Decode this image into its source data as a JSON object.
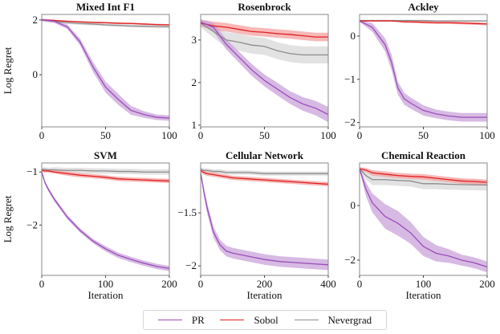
{
  "chart_data": [
    {
      "type": "line",
      "title": "Mixed Int F1",
      "xlabel": "",
      "ylabel": "Log Regret",
      "xlim": [
        0,
        100
      ],
      "ylim": [
        -1.9,
        2.2
      ],
      "xticks": [
        0,
        50,
        100
      ],
      "yticks": [
        0,
        2
      ],
      "x": [
        0,
        10,
        20,
        30,
        40,
        50,
        60,
        70,
        80,
        90,
        100
      ],
      "series": [
        {
          "name": "PR",
          "values": [
            2.0,
            1.95,
            1.75,
            1.2,
            0.3,
            -0.45,
            -0.9,
            -1.3,
            -1.45,
            -1.55,
            -1.58
          ],
          "band": [
            0.05,
            0.06,
            0.08,
            0.12,
            0.18,
            0.2,
            0.2,
            0.16,
            0.12,
            0.1,
            0.1
          ]
        },
        {
          "name": "Sobol",
          "values": [
            2.0,
            1.98,
            1.95,
            1.93,
            1.91,
            1.9,
            1.88,
            1.87,
            1.85,
            1.83,
            1.82
          ],
          "band": [
            0.03,
            0.03,
            0.03,
            0.03,
            0.03,
            0.03,
            0.03,
            0.03,
            0.03,
            0.03,
            0.03
          ]
        },
        {
          "name": "Nevergrad",
          "values": [
            2.0,
            1.95,
            1.9,
            1.87,
            1.85,
            1.82,
            1.8,
            1.78,
            1.77,
            1.76,
            1.75
          ],
          "band": [
            0.04,
            0.05,
            0.05,
            0.05,
            0.05,
            0.05,
            0.05,
            0.05,
            0.05,
            0.05,
            0.05
          ]
        }
      ]
    },
    {
      "type": "line",
      "title": "Rosenbrock",
      "xlabel": "",
      "ylabel": "",
      "xlim": [
        0,
        100
      ],
      "ylim": [
        0.96,
        3.6
      ],
      "xticks": [
        0,
        50,
        100
      ],
      "yticks": [
        1,
        2,
        3
      ],
      "x": [
        0,
        10,
        20,
        30,
        40,
        50,
        60,
        70,
        80,
        90,
        100
      ],
      "series": [
        {
          "name": "PR",
          "values": [
            3.42,
            3.3,
            2.9,
            2.6,
            2.3,
            2.05,
            1.85,
            1.65,
            1.5,
            1.4,
            1.25
          ],
          "band": [
            0.06,
            0.1,
            0.12,
            0.13,
            0.14,
            0.14,
            0.15,
            0.15,
            0.16,
            0.17,
            0.18
          ]
        },
        {
          "name": "Sobol",
          "values": [
            3.4,
            3.33,
            3.3,
            3.25,
            3.2,
            3.18,
            3.15,
            3.13,
            3.1,
            3.07,
            3.07
          ],
          "band": [
            0.08,
            0.1,
            0.1,
            0.1,
            0.1,
            0.1,
            0.1,
            0.1,
            0.1,
            0.1,
            0.1
          ]
        },
        {
          "name": "Nevergrad",
          "values": [
            3.4,
            3.2,
            3.0,
            2.95,
            2.88,
            2.85,
            2.75,
            2.68,
            2.65,
            2.65,
            2.65
          ],
          "band": [
            0.1,
            0.14,
            0.18,
            0.2,
            0.2,
            0.2,
            0.2,
            0.2,
            0.2,
            0.2,
            0.2
          ]
        }
      ]
    },
    {
      "type": "line",
      "title": "Ackley",
      "xlabel": "",
      "ylabel": "",
      "xlim": [
        0,
        100
      ],
      "ylim": [
        -2.1,
        0.5
      ],
      "xticks": [
        0,
        50,
        100
      ],
      "yticks": [
        -2,
        -1,
        0
      ],
      "x": [
        0,
        10,
        20,
        25,
        30,
        35,
        40,
        50,
        60,
        70,
        80,
        90,
        100
      ],
      "series": [
        {
          "name": "PR",
          "values": [
            0.35,
            0.2,
            -0.2,
            -0.6,
            -1.2,
            -1.45,
            -1.55,
            -1.72,
            -1.8,
            -1.85,
            -1.88,
            -1.88,
            -1.88
          ],
          "band": [
            0.02,
            0.1,
            0.15,
            0.18,
            0.15,
            0.14,
            0.13,
            0.12,
            0.1,
            0.1,
            0.1,
            0.1,
            0.1
          ]
        },
        {
          "name": "Sobol",
          "values": [
            0.35,
            0.35,
            0.35,
            0.35,
            0.34,
            0.33,
            0.33,
            0.32,
            0.31,
            0.31,
            0.3,
            0.29,
            0.28
          ],
          "band": [
            0.01,
            0.01,
            0.01,
            0.01,
            0.01,
            0.03,
            0.03,
            0.03,
            0.03,
            0.03,
            0.03,
            0.03,
            0.03
          ]
        },
        {
          "name": "Nevergrad",
          "values": [
            0.36,
            0.36,
            0.36,
            0.36,
            0.36,
            0.36,
            0.36,
            0.36,
            0.35,
            0.35,
            0.35,
            0.35,
            0.35
          ],
          "band": [
            0.01,
            0.01,
            0.01,
            0.01,
            0.01,
            0.01,
            0.01,
            0.01,
            0.01,
            0.01,
            0.01,
            0.01,
            0.01
          ]
        }
      ]
    },
    {
      "type": "line",
      "title": "SVM",
      "xlabel": "Iteration",
      "ylabel": "Log Regret",
      "xlim": [
        0,
        200
      ],
      "ylim": [
        -2.95,
        -0.83
      ],
      "xticks": [
        0,
        100,
        200
      ],
      "yticks": [
        -2,
        -1
      ],
      "x": [
        0,
        5,
        10,
        20,
        40,
        60,
        80,
        100,
        120,
        140,
        160,
        180,
        200
      ],
      "series": [
        {
          "name": "PR",
          "values": [
            -1.0,
            -1.2,
            -1.32,
            -1.52,
            -1.85,
            -2.1,
            -2.3,
            -2.45,
            -2.57,
            -2.65,
            -2.72,
            -2.78,
            -2.82
          ],
          "band": [
            0.02,
            0.03,
            0.04,
            0.04,
            0.04,
            0.04,
            0.04,
            0.05,
            0.05,
            0.05,
            0.05,
            0.05,
            0.05
          ]
        },
        {
          "name": "Sobol",
          "values": [
            -0.97,
            -0.98,
            -0.98,
            -1.0,
            -1.03,
            -1.06,
            -1.08,
            -1.1,
            -1.13,
            -1.14,
            -1.15,
            -1.16,
            -1.17
          ],
          "band": [
            0.03,
            0.03,
            0.03,
            0.03,
            0.04,
            0.04,
            0.04,
            0.04,
            0.04,
            0.04,
            0.04,
            0.04,
            0.04
          ]
        },
        {
          "name": "Nevergrad",
          "values": [
            -0.95,
            -0.95,
            -0.96,
            -0.96,
            -0.97,
            -0.97,
            -0.98,
            -0.98,
            -0.99,
            -0.99,
            -1.0,
            -1.0,
            -1.0
          ],
          "band": [
            0.03,
            0.04,
            0.04,
            0.05,
            0.05,
            0.05,
            0.05,
            0.05,
            0.05,
            0.05,
            0.05,
            0.05,
            0.05
          ]
        }
      ]
    },
    {
      "type": "line",
      "title": "Cellular Network",
      "xlabel": "Iteration",
      "ylabel": "",
      "xlim": [
        0,
        400
      ],
      "ylim": [
        -2.09,
        -1.03
      ],
      "xticks": [
        0,
        200,
        400
      ],
      "yticks": [
        -2.0,
        -1.5
      ],
      "x": [
        0,
        10,
        20,
        40,
        60,
        80,
        100,
        150,
        200,
        250,
        300,
        350,
        400
      ],
      "series": [
        {
          "name": "PR",
          "values": [
            -1.12,
            -1.3,
            -1.45,
            -1.68,
            -1.8,
            -1.86,
            -1.88,
            -1.91,
            -1.94,
            -1.96,
            -1.97,
            -1.98,
            -1.99
          ],
          "band": [
            0.02,
            0.04,
            0.05,
            0.05,
            0.05,
            0.05,
            0.05,
            0.05,
            0.05,
            0.05,
            0.05,
            0.05,
            0.05
          ]
        },
        {
          "name": "Sobol",
          "values": [
            -1.1,
            -1.12,
            -1.13,
            -1.14,
            -1.15,
            -1.16,
            -1.17,
            -1.18,
            -1.19,
            -1.2,
            -1.21,
            -1.22,
            -1.23
          ],
          "band": [
            0.02,
            0.02,
            0.02,
            0.02,
            0.02,
            0.02,
            0.02,
            0.02,
            0.02,
            0.02,
            0.02,
            0.02,
            0.02
          ]
        },
        {
          "name": "Nevergrad",
          "values": [
            -1.09,
            -1.1,
            -1.1,
            -1.11,
            -1.11,
            -1.12,
            -1.12,
            -1.12,
            -1.13,
            -1.13,
            -1.13,
            -1.13,
            -1.13
          ],
          "band": [
            0.02,
            0.02,
            0.02,
            0.02,
            0.02,
            0.02,
            0.02,
            0.02,
            0.02,
            0.02,
            0.02,
            0.02,
            0.02
          ]
        }
      ]
    },
    {
      "type": "line",
      "title": "Chemical Reaction",
      "xlabel": "Iteration",
      "ylabel": "",
      "xlim": [
        0,
        200
      ],
      "ylim": [
        -2.56,
        1.56
      ],
      "xticks": [
        0,
        100,
        200
      ],
      "yticks": [
        -2,
        0
      ],
      "x": [
        0,
        10,
        20,
        40,
        60,
        80,
        100,
        120,
        140,
        160,
        180,
        200
      ],
      "series": [
        {
          "name": "PR",
          "values": [
            1.35,
            0.6,
            0.1,
            -0.4,
            -0.65,
            -1.0,
            -1.5,
            -1.75,
            -1.85,
            -2.0,
            -2.1,
            -2.25
          ],
          "band": [
            0.05,
            0.25,
            0.35,
            0.45,
            0.45,
            0.4,
            0.35,
            0.3,
            0.25,
            0.2,
            0.2,
            0.2
          ]
        },
        {
          "name": "Sobol",
          "values": [
            1.35,
            1.3,
            1.2,
            1.15,
            1.1,
            1.07,
            1.05,
            1.0,
            0.95,
            0.9,
            0.88,
            0.85
          ],
          "band": [
            0.06,
            0.08,
            0.1,
            0.1,
            0.1,
            0.1,
            0.1,
            0.1,
            0.1,
            0.1,
            0.1,
            0.1
          ]
        },
        {
          "name": "Nevergrad",
          "values": [
            1.35,
            1.1,
            0.95,
            0.95,
            0.92,
            0.9,
            0.8,
            0.8,
            0.78,
            0.77,
            0.76,
            0.75
          ],
          "band": [
            0.06,
            0.15,
            0.2,
            0.2,
            0.2,
            0.2,
            0.2,
            0.2,
            0.2,
            0.2,
            0.2,
            0.2
          ]
        }
      ]
    }
  ],
  "legend": {
    "position": "bottom-center",
    "items": [
      {
        "label": "PR",
        "color": "#9b4dbb"
      },
      {
        "label": "Sobol",
        "color": "#e02020"
      },
      {
        "label": "Nevergrad",
        "color": "#8c8c8c"
      }
    ]
  },
  "colors": {
    "PR": "#9b4dbb",
    "Sobol": "#e02020",
    "Nevergrad": "#8c8c8c",
    "PR_band": "#c9a3d9",
    "Sobol_band": "#f4a0a0",
    "Nevergrad_band": "#d8d8d8"
  }
}
